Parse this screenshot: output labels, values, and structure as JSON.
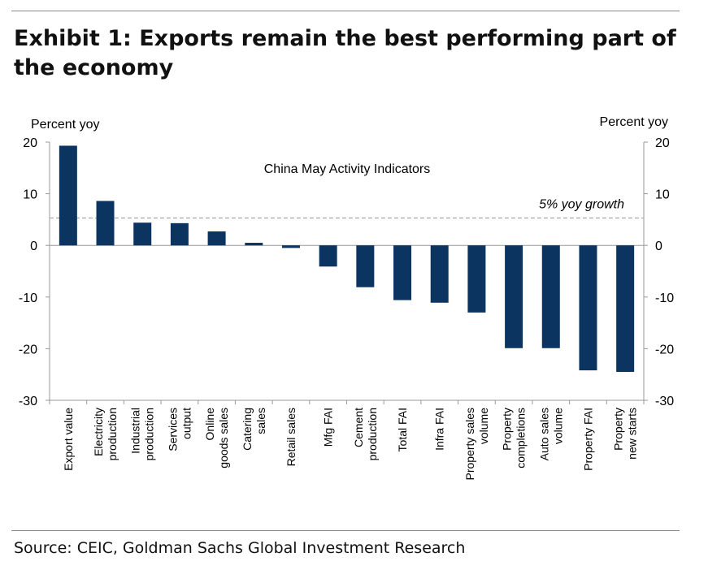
{
  "title": "Exhibit 1: Exports remain the best performing part of the economy",
  "source": "Source: CEIC, Goldman Sachs Global Investment Research",
  "colors": {
    "bar": "#0b3560",
    "axis": "#999999",
    "reference_line": "#aaaaaa"
  },
  "chart_data": {
    "type": "bar",
    "title": "China May Activity Indicators",
    "ylabel_left": "Percent yoy",
    "ylabel_right": "Percent yoy",
    "ylim": [
      -30,
      20
    ],
    "yticks": [
      20,
      10,
      0,
      -10,
      -20,
      -30
    ],
    "grid": false,
    "categories": [
      [
        "Export value"
      ],
      [
        "Electricity",
        "production"
      ],
      [
        "Industrial",
        "production"
      ],
      [
        "Services",
        "output"
      ],
      [
        "Online",
        "goods sales"
      ],
      [
        "Catering",
        "sales"
      ],
      [
        "Retail sales"
      ],
      [
        "Mfg FAI"
      ],
      [
        "Cement",
        "production"
      ],
      [
        "Total FAI"
      ],
      [
        "Infra FAI"
      ],
      [
        "Property sales",
        "volume"
      ],
      [
        "Property",
        "completions"
      ],
      [
        "Auto sales",
        "volume"
      ],
      [
        "Property FAI"
      ],
      [
        "Property",
        "new starts"
      ]
    ],
    "values": [
      19.3,
      8.6,
      4.4,
      4.3,
      2.7,
      0.5,
      -0.5,
      -4.1,
      -8.1,
      -10.6,
      -11.1,
      -13.0,
      -19.9,
      -19.9,
      -24.2,
      -24.5
    ],
    "reference_line": {
      "value": 5.3,
      "label": "5% yoy growth",
      "style": "dashed"
    }
  }
}
